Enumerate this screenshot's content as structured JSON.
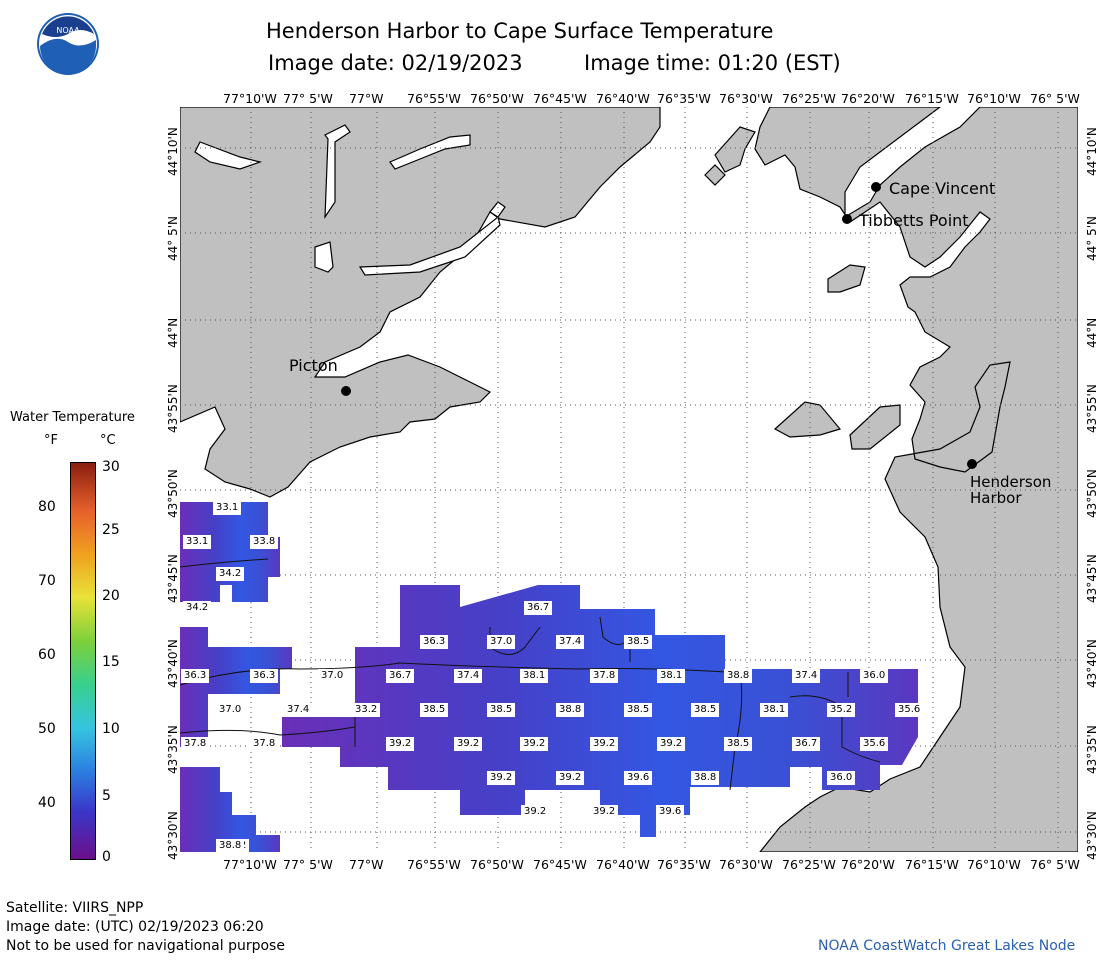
{
  "header": {
    "title": "Henderson Harbor to Cape Surface Temperature",
    "image_date": "Image date: 02/19/2023",
    "image_time": "Image time: 01:20 (EST)",
    "logo_text": "NOAA"
  },
  "legend": {
    "title": "Water Temperature",
    "unit_f": "°F",
    "unit_c": "°C",
    "f_ticks": [
      "80",
      "70",
      "60",
      "50",
      "40"
    ],
    "c_ticks": [
      "30",
      "25",
      "20",
      "15",
      "10",
      "5",
      "0"
    ]
  },
  "axes": {
    "lon_labels": [
      "77°10'W",
      "77° 5'W",
      "77°W",
      "76°55'W",
      "76°50'W",
      "76°45'W",
      "76°40'W",
      "76°35'W",
      "76°30'W",
      "76°25'W",
      "76°20'W",
      "76°15'W",
      "76°10'W",
      "76° 5'W"
    ],
    "lat_labels": [
      "44°10'N",
      "44° 5'N",
      "44°N",
      "43°55'N",
      "43°50'N",
      "43°45'N",
      "43°40'N",
      "43°35'N",
      "43°30'N"
    ]
  },
  "places": {
    "cape_vincent": "Cape Vincent",
    "tibbetts_point": "Tibbetts Point",
    "picton": "Picton",
    "henderson_line1": "Henderson",
    "henderson_line2": "Harbor"
  },
  "temperatures": [
    "33.1",
    "33.1",
    "33.8",
    "34.2",
    "34.2",
    "36.7",
    "36.3",
    "37.0",
    "37.4",
    "38.5",
    "36.3",
    "36.3",
    "37.0",
    "36.7",
    "37.4",
    "38.1",
    "37.8",
    "38.1",
    "38.8",
    "37.4",
    "36.0",
    "37.0",
    "37.4",
    "33.2",
    "38.5",
    "38.5",
    "38.8",
    "38.5",
    "38.5",
    "38.1",
    "35.2",
    "35.6",
    "37.8",
    "37.8",
    "39.2",
    "39.2",
    "39.2",
    "39.2",
    "39.2",
    "38.5",
    "36.7",
    "35.6",
    "39.2",
    "39.2",
    "39.6",
    "38.8",
    "36.0",
    "39.2",
    "39.2",
    "39.6",
    "39.2",
    "38.8"
  ],
  "footer": {
    "satellite": "Satellite: VIIRS_NPP",
    "utc_date": "Image date: (UTC) 02/19/2023  06:20",
    "warning": "Not to be used for navigational purpose",
    "credit": "NOAA CoastWatch Great Lakes Node"
  },
  "colors": {
    "land": "#c0c0c0",
    "water_cold": "#7a2ea8",
    "water_mid": "#4a3fc8",
    "water_warm": "#3358e0",
    "credit_text": "#2a5fb0"
  }
}
